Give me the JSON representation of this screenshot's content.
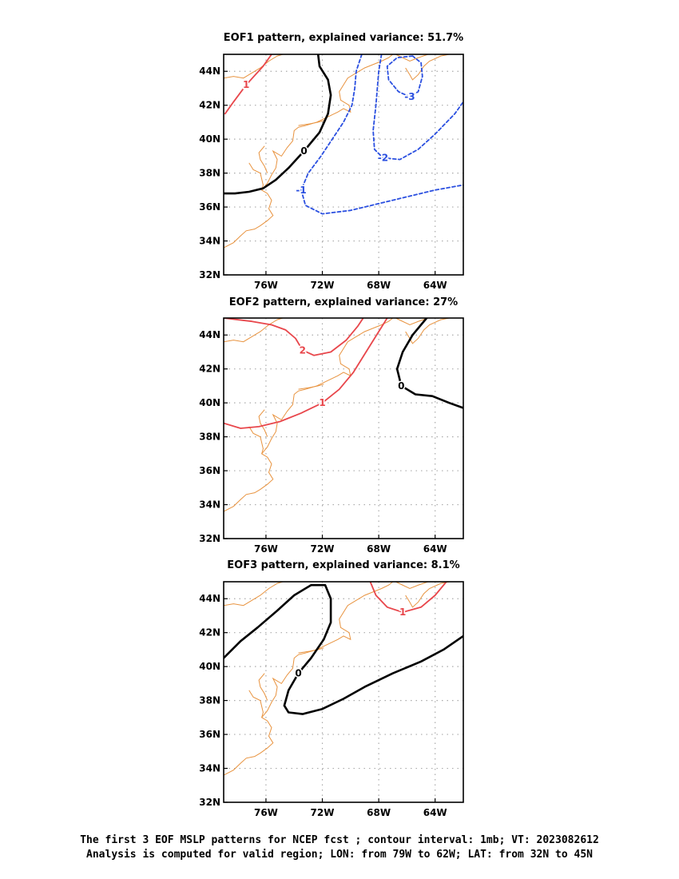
{
  "chart_data": [
    {
      "type": "contour",
      "title": "EOF1 pattern, explained variance: 51.7%",
      "xlim": [
        "79W",
        "62W"
      ],
      "ylim": [
        "32N",
        "45N"
      ],
      "x_ticks": [
        "76W",
        "72W",
        "68W",
        "64W"
      ],
      "y_ticks": [
        "32N",
        "34N",
        "36N",
        "38N",
        "40N",
        "42N",
        "44N"
      ],
      "grid": true,
      "contours": [
        {
          "level": 1,
          "label": "1",
          "color": "#e8464b",
          "dashed": false,
          "points": [
            [
              -78.9,
              41.5
            ],
            [
              -78.3,
              42.2
            ],
            [
              -77.4,
              43.2
            ],
            [
              -76.2,
              44.3
            ],
            [
              -75.6,
              45.0
            ]
          ]
        },
        {
          "level": 0,
          "label": "0",
          "color": "#000000",
          "dashed": false,
          "points": [
            [
              -72.3,
              45.0
            ],
            [
              -72.2,
              44.3
            ],
            [
              -71.6,
              43.5
            ],
            [
              -71.4,
              42.6
            ],
            [
              -71.6,
              41.5
            ],
            [
              -72.2,
              40.4
            ],
            [
              -73.3,
              39.3
            ],
            [
              -74.4,
              38.3
            ],
            [
              -75.3,
              37.6
            ],
            [
              -76.2,
              37.1
            ],
            [
              -77.2,
              36.9
            ],
            [
              -78.2,
              36.8
            ],
            [
              -79.0,
              36.8
            ]
          ]
        },
        {
          "level": -1,
          "label": "-1",
          "color": "#2a4fe0",
          "dashed": true,
          "points": [
            [
              -69.2,
              45.0
            ],
            [
              -69.6,
              44.0
            ],
            [
              -69.7,
              43.0
            ],
            [
              -69.9,
              42.0
            ],
            [
              -70.5,
              41.0
            ],
            [
              -71.3,
              40.0
            ],
            [
              -72.1,
              39.0
            ],
            [
              -73.0,
              38.0
            ],
            [
              -73.5,
              37.0
            ],
            [
              -73.2,
              36.1
            ],
            [
              -72.0,
              35.6
            ],
            [
              -70.0,
              35.8
            ],
            [
              -68.0,
              36.2
            ],
            [
              -66.0,
              36.6
            ],
            [
              -64.0,
              37.0
            ],
            [
              -62.0,
              37.3
            ]
          ]
        },
        {
          "level": -2,
          "label": "-2",
          "color": "#2a4fe0",
          "dashed": true,
          "points": [
            [
              -67.8,
              45.0
            ],
            [
              -68.0,
              44.0
            ],
            [
              -68.2,
              42.0
            ],
            [
              -68.4,
              40.5
            ],
            [
              -68.3,
              39.4
            ],
            [
              -67.7,
              38.9
            ],
            [
              -66.5,
              38.8
            ],
            [
              -65.2,
              39.4
            ],
            [
              -64.0,
              40.3
            ],
            [
              -62.6,
              41.5
            ],
            [
              -62.0,
              42.2
            ]
          ]
        },
        {
          "level": -3,
          "label": "-3",
          "color": "#2a4fe0",
          "dashed": true,
          "points": [
            [
              -65.6,
              44.9
            ],
            [
              -66.7,
              44.8
            ],
            [
              -67.4,
              44.3
            ],
            [
              -67.3,
              43.5
            ],
            [
              -66.6,
              42.8
            ],
            [
              -65.8,
              42.5
            ],
            [
              -65.2,
              42.8
            ],
            [
              -64.9,
              43.7
            ],
            [
              -65.0,
              44.5
            ],
            [
              -65.6,
              44.9
            ]
          ]
        }
      ]
    },
    {
      "type": "contour",
      "title": "EOF2 pattern, explained variance: 27%",
      "xlim": [
        "79W",
        "62W"
      ],
      "ylim": [
        "32N",
        "45N"
      ],
      "x_ticks": [
        "76W",
        "72W",
        "68W",
        "64W"
      ],
      "y_ticks": [
        "32N",
        "34N",
        "36N",
        "38N",
        "40N",
        "42N",
        "44N"
      ],
      "grid": true,
      "contours": [
        {
          "level": 2,
          "label": "2",
          "color": "#e8464b",
          "dashed": false,
          "points": [
            [
              -79.0,
              45.0
            ],
            [
              -77.0,
              44.8
            ],
            [
              -75.6,
              44.6
            ],
            [
              -74.6,
              44.3
            ],
            [
              -73.9,
              43.8
            ],
            [
              -73.4,
              43.1
            ],
            [
              -72.6,
              42.8
            ],
            [
              -71.4,
              43.0
            ],
            [
              -70.3,
              43.7
            ],
            [
              -69.5,
              44.5
            ],
            [
              -69.1,
              45.0
            ]
          ]
        },
        {
          "level": 1,
          "label": "1",
          "color": "#e8464b",
          "dashed": false,
          "points": [
            [
              -79.0,
              38.8
            ],
            [
              -77.8,
              38.5
            ],
            [
              -76.5,
              38.6
            ],
            [
              -75.0,
              38.9
            ],
            [
              -73.5,
              39.4
            ],
            [
              -72.0,
              40.0
            ],
            [
              -70.8,
              40.8
            ],
            [
              -69.8,
              41.8
            ],
            [
              -68.9,
              43.0
            ],
            [
              -68.0,
              44.2
            ],
            [
              -67.4,
              45.0
            ]
          ]
        },
        {
          "level": 0,
          "label": "0",
          "color": "#000000",
          "dashed": false,
          "points": [
            [
              -64.6,
              45.0
            ],
            [
              -65.6,
              44.0
            ],
            [
              -66.3,
              43.0
            ],
            [
              -66.7,
              42.0
            ],
            [
              -66.4,
              41.0
            ],
            [
              -65.4,
              40.5
            ],
            [
              -64.2,
              40.4
            ],
            [
              -63.0,
              40.0
            ],
            [
              -62.0,
              39.7
            ]
          ]
        }
      ]
    },
    {
      "type": "contour",
      "title": "EOF3 pattern, explained variance: 8.1%",
      "xlim": [
        "79W",
        "62W"
      ],
      "ylim": [
        "32N",
        "45N"
      ],
      "x_ticks": [
        "76W",
        "72W",
        "68W",
        "64W"
      ],
      "y_ticks": [
        "32N",
        "34N",
        "36N",
        "38N",
        "40N",
        "42N",
        "44N"
      ],
      "grid": true,
      "contours": [
        {
          "level": 1,
          "label": "1",
          "color": "#e8464b",
          "dashed": false,
          "points": [
            [
              -68.6,
              45.0
            ],
            [
              -68.2,
              44.2
            ],
            [
              -67.4,
              43.5
            ],
            [
              -66.3,
              43.2
            ],
            [
              -65.0,
              43.5
            ],
            [
              -64.0,
              44.2
            ],
            [
              -63.2,
              45.0
            ]
          ]
        },
        {
          "level": 0,
          "label": "0",
          "color": "#000000",
          "dashed": false,
          "points": [
            [
              -79.0,
              40.5
            ],
            [
              -77.8,
              41.5
            ],
            [
              -76.6,
              42.3
            ],
            [
              -75.2,
              43.3
            ],
            [
              -74.0,
              44.2
            ],
            [
              -72.8,
              44.8
            ],
            [
              -71.8,
              44.8
            ],
            [
              -71.4,
              44.0
            ],
            [
              -71.4,
              42.6
            ],
            [
              -71.9,
              41.6
            ],
            [
              -72.8,
              40.5
            ],
            [
              -73.7,
              39.6
            ],
            [
              -74.4,
              38.6
            ],
            [
              -74.7,
              37.7
            ],
            [
              -74.4,
              37.3
            ],
            [
              -73.4,
              37.2
            ],
            [
              -72.0,
              37.5
            ],
            [
              -70.5,
              38.1
            ],
            [
              -69.0,
              38.8
            ],
            [
              -67.0,
              39.6
            ],
            [
              -65.0,
              40.3
            ],
            [
              -63.4,
              41.0
            ],
            [
              -62.0,
              41.8
            ]
          ]
        }
      ]
    }
  ],
  "caption": {
    "line1": "The first 3 EOF MSLP patterns for NCEP fcst ; contour interval: 1mb; VT: 2023082612",
    "line2": "Analysis is computed for valid region; LON: from 79W to 62W; LAT: from 32N to 45N"
  },
  "colors": {
    "coastline": "#e8933f",
    "positive": "#e8464b",
    "negative": "#2a4fe0",
    "zero": "#000000",
    "grid": "#aaaaaa"
  }
}
